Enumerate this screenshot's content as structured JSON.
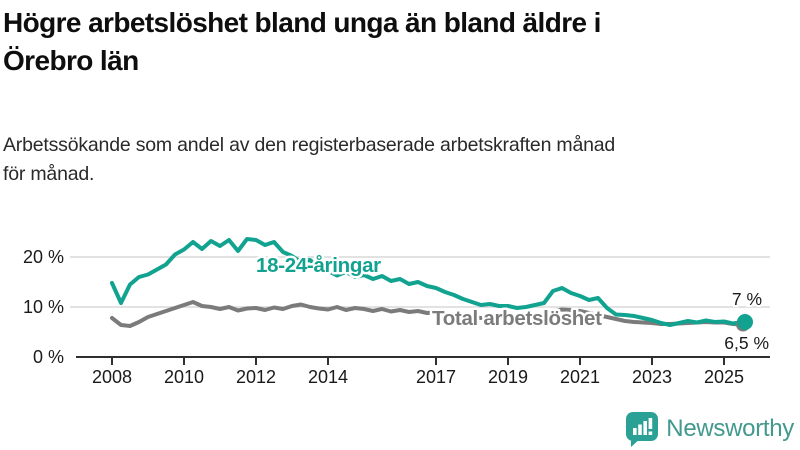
{
  "header": {
    "title_lines": [
      "Högre arbetslöshet bland unga än bland äldre i",
      "Örebro län"
    ],
    "subtitle_lines": [
      "Arbetssökande som andel av den registerbaserade arbetskraften månad",
      "för månad."
    ]
  },
  "chart_data": {
    "type": "line",
    "title": "Högre arbetslöshet bland unga än bland äldre i Örebro län",
    "subtitle": "Arbetssökande som andel av den registerbaserade arbetskraften månad för månad.",
    "x_unit": "year (monthly data, values sampled quarterly)",
    "x_start": 2008.0,
    "x_step_years": 0.25,
    "x_tick_years": [
      2008,
      2010,
      2012,
      2014,
      2017,
      2019,
      2021,
      2023,
      2025
    ],
    "y_ticks": [
      {
        "v": 0,
        "label": "0 %"
      },
      {
        "v": 10,
        "label": "10 %"
      },
      {
        "v": 20,
        "label": "20 %"
      }
    ],
    "ylim": [
      0,
      25
    ],
    "grid": "horizontal",
    "legend_position": "inline-labels-on-lines",
    "series": [
      {
        "name": "18-24-åringar",
        "color": "#12a390",
        "end_label": "7 %",
        "end_value": 7.0,
        "values": [
          14.8,
          10.8,
          14.5,
          16.0,
          16.5,
          17.5,
          18.5,
          20.5,
          21.5,
          23.0,
          21.6,
          23.2,
          22.2,
          23.4,
          21.2,
          23.6,
          23.4,
          22.4,
          23.0,
          21.0,
          20.2,
          19.0,
          19.4,
          17.8,
          17.2,
          16.3,
          17.0,
          16.0,
          16.4,
          15.6,
          16.2,
          15.2,
          15.6,
          14.6,
          15.0,
          14.2,
          13.8,
          13.0,
          12.4,
          11.6,
          11.0,
          10.4,
          10.6,
          10.2,
          10.2,
          9.8,
          10.0,
          10.4,
          10.8,
          13.2,
          13.8,
          12.8,
          12.2,
          11.4,
          11.8,
          9.8,
          8.5,
          8.4,
          8.2,
          7.8,
          7.4,
          6.8,
          6.4,
          6.8,
          7.2,
          6.9,
          7.3,
          7.0,
          7.1,
          6.7,
          7.0
        ]
      },
      {
        "name": "Total arbetslöshet",
        "color": "#7b7b7b",
        "end_label": "6,5 %",
        "end_value": 6.5,
        "values": [
          7.8,
          6.4,
          6.2,
          7.0,
          8.0,
          8.6,
          9.2,
          9.8,
          10.4,
          11.0,
          10.2,
          10.0,
          9.6,
          10.0,
          9.3,
          9.7,
          9.8,
          9.4,
          9.9,
          9.6,
          10.2,
          10.5,
          10.0,
          9.7,
          9.5,
          10.0,
          9.4,
          9.8,
          9.6,
          9.2,
          9.6,
          9.1,
          9.4,
          9.0,
          9.2,
          8.8,
          9.0,
          8.6,
          8.4,
          8.2,
          8.0,
          7.8,
          7.7,
          7.6,
          7.6,
          7.5,
          7.7,
          7.9,
          8.2,
          9.2,
          9.5,
          9.4,
          9.2,
          8.8,
          8.4,
          8.0,
          7.6,
          7.2,
          7.0,
          6.9,
          6.8,
          6.6,
          6.6,
          6.7,
          6.8,
          6.9,
          7.0,
          6.9,
          6.9,
          6.6,
          6.5
        ]
      }
    ],
    "colors": {
      "axis": "#2f2f2f",
      "gridline": "#d9d9d9",
      "tick_label": "#1a1a1a"
    }
  },
  "branding": {
    "logo_text": "Newsworthy",
    "logo_icon": "newsworthy-chart-bubble-icon",
    "logo_color": "#42998e",
    "icon_color": "#2ba095"
  }
}
